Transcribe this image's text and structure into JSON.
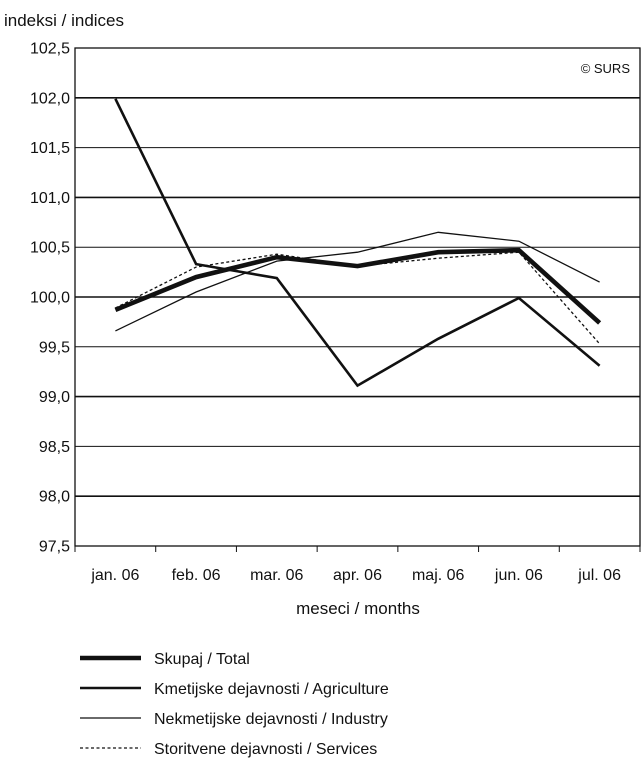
{
  "chart_data": {
    "type": "line",
    "ylabel": "indeksi / indices",
    "xlabel": "meseci / months",
    "copyright": "© SURS",
    "categories": [
      "jan. 06",
      "feb. 06",
      "mar. 06",
      "apr. 06",
      "maj. 06",
      "jun. 06",
      "jul. 06"
    ],
    "ylim": [
      97.5,
      102.5
    ],
    "ytick_step": 0.5,
    "ytick_labels": [
      "97,5",
      "98,0",
      "98,5",
      "99,0",
      "99,5",
      "100,0",
      "100,5",
      "101,0",
      "101,5",
      "102,0",
      "102,5"
    ],
    "grid": true,
    "legend_position": "bottom",
    "series": [
      {
        "name": "Skupaj / Total",
        "values": [
          99.87,
          100.2,
          100.4,
          100.31,
          100.45,
          100.47,
          99.74
        ],
        "style": "solid",
        "weight": "heavy",
        "color": "#111111"
      },
      {
        "name": "Kmetijske dejavnosti / Agriculture",
        "values": [
          101.99,
          100.33,
          100.19,
          99.11,
          99.58,
          99.99,
          99.31
        ],
        "style": "solid",
        "weight": "medium",
        "color": "#111111"
      },
      {
        "name": "Nekmetijske dejavnosti / Industry",
        "values": [
          99.66,
          100.05,
          100.36,
          100.45,
          100.65,
          100.56,
          100.15
        ],
        "style": "solid",
        "weight": "thin",
        "color": "#111111"
      },
      {
        "name": "Storitvene dejavnosti / Services",
        "values": [
          99.89,
          100.3,
          100.43,
          100.31,
          100.39,
          100.45,
          99.53
        ],
        "style": "dotted",
        "weight": "thin",
        "color": "#111111"
      }
    ]
  }
}
